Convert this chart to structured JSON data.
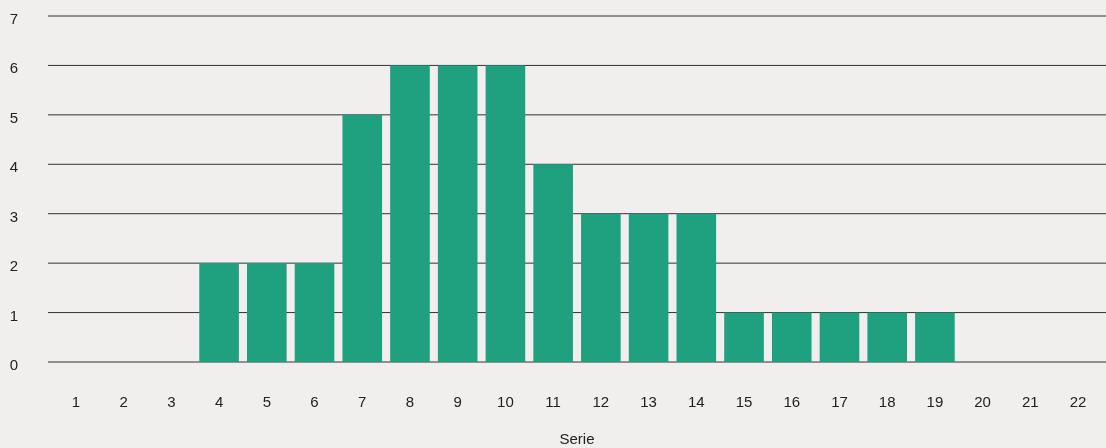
{
  "chart_data": {
    "type": "bar",
    "xlabel": "Serie",
    "categories": [
      "1",
      "2",
      "3",
      "4",
      "5",
      "6",
      "7",
      "8",
      "9",
      "10",
      "11",
      "12",
      "13",
      "14",
      "15",
      "16",
      "17",
      "18",
      "19",
      "20",
      "21",
      "22"
    ],
    "values": [
      0,
      0,
      0,
      2,
      2,
      2,
      5,
      6,
      6,
      6,
      4,
      3,
      3,
      3,
      1,
      1,
      1,
      1,
      1,
      0,
      0,
      0
    ],
    "color": "#1fa07e",
    "ylim": [
      0,
      7
    ],
    "yticks": [
      0,
      1,
      2,
      3,
      4,
      5,
      6,
      7
    ],
    "grid": "y"
  }
}
